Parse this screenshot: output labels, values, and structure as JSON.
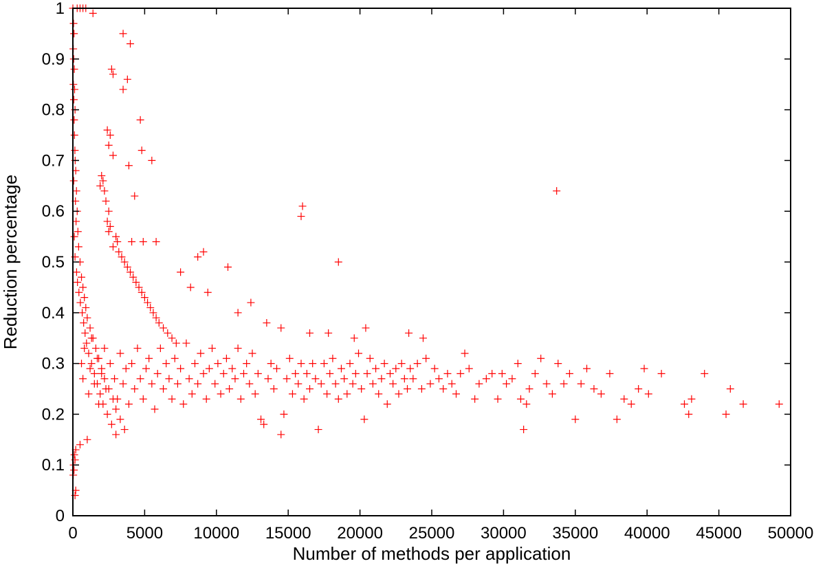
{
  "chart_data": {
    "type": "scatter",
    "title": "",
    "xlabel": "Number of methods per application",
    "ylabel": "Reduction percentage",
    "xlim": [
      0,
      50000
    ],
    "ylim": [
      0,
      1
    ],
    "x_ticks": [
      0,
      5000,
      10000,
      15000,
      20000,
      25000,
      30000,
      35000,
      40000,
      45000,
      50000
    ],
    "y_ticks": [
      0,
      0.1,
      0.2,
      0.3,
      0.4,
      0.5,
      0.6,
      0.7,
      0.8,
      0.9,
      1
    ],
    "x_tick_labels": [
      "0",
      "5000",
      "10000",
      "15000",
      "20000",
      "25000",
      "30000",
      "35000",
      "40000",
      "45000",
      "50000"
    ],
    "y_tick_labels": [
      "0",
      "0.1",
      "0.2",
      "0.3",
      "0.4",
      "0.5",
      "0.6",
      "0.7",
      "0.8",
      "0.9",
      "1"
    ],
    "marker": "+",
    "marker_color": "#ff0000",
    "grid": false,
    "legend": "none",
    "series": [
      {
        "points": [
          [
            0,
            1.0
          ],
          [
            50,
            0.97
          ],
          [
            80,
            0.95
          ],
          [
            30,
            0.92
          ],
          [
            60,
            0.9
          ],
          [
            100,
            0.88
          ],
          [
            40,
            0.85
          ],
          [
            120,
            0.84
          ],
          [
            70,
            0.82
          ],
          [
            150,
            0.8
          ],
          [
            90,
            0.78
          ],
          [
            110,
            0.75
          ],
          [
            140,
            0.72
          ],
          [
            160,
            0.7
          ],
          [
            200,
            0.68
          ],
          [
            60,
            0.66
          ],
          [
            250,
            0.64
          ],
          [
            180,
            0.62
          ],
          [
            300,
            0.6
          ],
          [
            220,
            0.58
          ],
          [
            350,
            0.56
          ],
          [
            100,
            0.55
          ],
          [
            400,
            0.53
          ],
          [
            150,
            0.51
          ],
          [
            500,
            0.5
          ],
          [
            260,
            0.48
          ],
          [
            600,
            0.47
          ],
          [
            320,
            0.46
          ],
          [
            700,
            0.45
          ],
          [
            420,
            0.44
          ],
          [
            800,
            0.43
          ],
          [
            520,
            0.42
          ],
          [
            900,
            0.41
          ],
          [
            650,
            0.4
          ],
          [
            1000,
            0.39
          ],
          [
            750,
            0.38
          ],
          [
            1200,
            0.37
          ],
          [
            850,
            0.36
          ],
          [
            1400,
            0.35
          ],
          [
            950,
            0.34
          ],
          [
            1600,
            0.33
          ],
          [
            1100,
            0.32
          ],
          [
            1800,
            0.31
          ],
          [
            1300,
            0.3
          ],
          [
            2000,
            0.29
          ],
          [
            1500,
            0.28
          ],
          [
            2200,
            0.27
          ],
          [
            1700,
            0.26
          ],
          [
            2500,
            0.25
          ],
          [
            1900,
            0.24
          ],
          [
            2800,
            0.23
          ],
          [
            2100,
            0.22
          ],
          [
            3000,
            0.21
          ],
          [
            2400,
            0.2
          ],
          [
            3300,
            0.19
          ],
          [
            2700,
            0.18
          ],
          [
            3600,
            0.17
          ],
          [
            3000,
            0.16
          ],
          [
            1000,
            0.15
          ],
          [
            500,
            0.14
          ],
          [
            200,
            0.13
          ],
          [
            100,
            0.12
          ],
          [
            150,
            0.11
          ],
          [
            50,
            0.1
          ],
          [
            80,
            0.09
          ],
          [
            30,
            0.08
          ],
          [
            200,
            0.05
          ],
          [
            150,
            0.04
          ],
          [
            300,
            1.0
          ],
          [
            500,
            1.0
          ],
          [
            700,
            1.0
          ],
          [
            900,
            1.0
          ],
          [
            1400,
            0.99
          ],
          [
            3500,
            0.95
          ],
          [
            4000,
            0.93
          ],
          [
            2700,
            0.88
          ],
          [
            2800,
            0.87
          ],
          [
            3800,
            0.86
          ],
          [
            3500,
            0.84
          ],
          [
            4700,
            0.78
          ],
          [
            2400,
            0.76
          ],
          [
            2600,
            0.75
          ],
          [
            2500,
            0.73
          ],
          [
            4800,
            0.72
          ],
          [
            2800,
            0.71
          ],
          [
            5500,
            0.7
          ],
          [
            3900,
            0.69
          ],
          [
            2000,
            0.67
          ],
          [
            2100,
            0.66
          ],
          [
            1900,
            0.65
          ],
          [
            2200,
            0.64
          ],
          [
            4300,
            0.63
          ],
          [
            2300,
            0.62
          ],
          [
            2500,
            0.6
          ],
          [
            2400,
            0.58
          ],
          [
            2600,
            0.57
          ],
          [
            2500,
            0.56
          ],
          [
            3000,
            0.55
          ],
          [
            3100,
            0.54
          ],
          [
            4100,
            0.54
          ],
          [
            4900,
            0.54
          ],
          [
            5800,
            0.54
          ],
          [
            2800,
            0.53
          ],
          [
            3200,
            0.52
          ],
          [
            3400,
            0.51
          ],
          [
            3600,
            0.5
          ],
          [
            3800,
            0.49
          ],
          [
            4000,
            0.48
          ],
          [
            4200,
            0.47
          ],
          [
            4400,
            0.46
          ],
          [
            4600,
            0.45
          ],
          [
            4800,
            0.44
          ],
          [
            5000,
            0.43
          ],
          [
            5200,
            0.42
          ],
          [
            5400,
            0.41
          ],
          [
            5600,
            0.4
          ],
          [
            5800,
            0.39
          ],
          [
            6000,
            0.38
          ],
          [
            6300,
            0.37
          ],
          [
            6600,
            0.36
          ],
          [
            6900,
            0.35
          ],
          [
            7200,
            0.34
          ],
          [
            16000,
            0.61
          ],
          [
            15900,
            0.59
          ],
          [
            18500,
            0.5
          ],
          [
            33700,
            0.64
          ],
          [
            10800,
            0.49
          ],
          [
            9100,
            0.52
          ],
          [
            8700,
            0.51
          ],
          [
            12400,
            0.42
          ],
          [
            7500,
            0.48
          ],
          [
            8200,
            0.45
          ],
          [
            9400,
            0.44
          ],
          [
            11500,
            0.4
          ],
          [
            13500,
            0.38
          ],
          [
            14500,
            0.37
          ],
          [
            16500,
            0.36
          ],
          [
            17800,
            0.36
          ],
          [
            20400,
            0.37
          ],
          [
            23400,
            0.36
          ],
          [
            24400,
            0.35
          ],
          [
            19600,
            0.35
          ],
          [
            600,
            0.3
          ],
          [
            700,
            0.27
          ],
          [
            800,
            0.33
          ],
          [
            1100,
            0.24
          ],
          [
            1200,
            0.29
          ],
          [
            1300,
            0.35
          ],
          [
            1500,
            0.26
          ],
          [
            1700,
            0.31
          ],
          [
            1800,
            0.22
          ],
          [
            2000,
            0.28
          ],
          [
            2200,
            0.33
          ],
          [
            2300,
            0.25
          ],
          [
            2600,
            0.3
          ],
          [
            2900,
            0.27
          ],
          [
            3100,
            0.23
          ],
          [
            3300,
            0.32
          ],
          [
            3500,
            0.26
          ],
          [
            3700,
            0.29
          ],
          [
            3900,
            0.22
          ],
          [
            4100,
            0.3
          ],
          [
            4300,
            0.25
          ],
          [
            4500,
            0.33
          ],
          [
            4700,
            0.27
          ],
          [
            4900,
            0.23
          ],
          [
            5100,
            0.29
          ],
          [
            5300,
            0.31
          ],
          [
            5500,
            0.26
          ],
          [
            5700,
            0.21
          ],
          [
            5900,
            0.28
          ],
          [
            6100,
            0.33
          ],
          [
            6300,
            0.25
          ],
          [
            6500,
            0.3
          ],
          [
            6700,
            0.27
          ],
          [
            6900,
            0.23
          ],
          [
            7100,
            0.31
          ],
          [
            7300,
            0.26
          ],
          [
            7500,
            0.29
          ],
          [
            7700,
            0.22
          ],
          [
            7900,
            0.34
          ],
          [
            8100,
            0.27
          ],
          [
            8300,
            0.24
          ],
          [
            8500,
            0.3
          ],
          [
            8700,
            0.26
          ],
          [
            8900,
            0.32
          ],
          [
            9100,
            0.28
          ],
          [
            9300,
            0.23
          ],
          [
            9500,
            0.29
          ],
          [
            9700,
            0.33
          ],
          [
            9900,
            0.26
          ],
          [
            10100,
            0.3
          ],
          [
            10300,
            0.24
          ],
          [
            10500,
            0.28
          ],
          [
            10700,
            0.31
          ],
          [
            10900,
            0.25
          ],
          [
            11100,
            0.29
          ],
          [
            11300,
            0.27
          ],
          [
            11500,
            0.33
          ],
          [
            11700,
            0.23
          ],
          [
            11900,
            0.28
          ],
          [
            12100,
            0.3
          ],
          [
            12300,
            0.26
          ],
          [
            12500,
            0.32
          ],
          [
            12700,
            0.24
          ],
          [
            12900,
            0.28
          ],
          [
            13100,
            0.19
          ],
          [
            13300,
            0.18
          ],
          [
            13600,
            0.27
          ],
          [
            13800,
            0.3
          ],
          [
            14000,
            0.25
          ],
          [
            14200,
            0.29
          ],
          [
            14500,
            0.16
          ],
          [
            14700,
            0.2
          ],
          [
            14900,
            0.27
          ],
          [
            15100,
            0.31
          ],
          [
            15300,
            0.24
          ],
          [
            15500,
            0.28
          ],
          [
            15700,
            0.26
          ],
          [
            15900,
            0.3
          ],
          [
            16100,
            0.23
          ],
          [
            16300,
            0.28
          ],
          [
            16500,
            0.25
          ],
          [
            16700,
            0.3
          ],
          [
            16900,
            0.27
          ],
          [
            17100,
            0.17
          ],
          [
            17300,
            0.26
          ],
          [
            17500,
            0.3
          ],
          [
            17700,
            0.24
          ],
          [
            17900,
            0.28
          ],
          [
            18100,
            0.31
          ],
          [
            18300,
            0.26
          ],
          [
            18500,
            0.23
          ],
          [
            18700,
            0.29
          ],
          [
            18900,
            0.27
          ],
          [
            19100,
            0.24
          ],
          [
            19300,
            0.3
          ],
          [
            19500,
            0.26
          ],
          [
            19700,
            0.28
          ],
          [
            19900,
            0.32
          ],
          [
            20100,
            0.25
          ],
          [
            20300,
            0.19
          ],
          [
            20500,
            0.28
          ],
          [
            20700,
            0.31
          ],
          [
            20900,
            0.26
          ],
          [
            21100,
            0.29
          ],
          [
            21300,
            0.24
          ],
          [
            21500,
            0.27
          ],
          [
            21700,
            0.3
          ],
          [
            21900,
            0.22
          ],
          [
            22100,
            0.28
          ],
          [
            22300,
            0.26
          ],
          [
            22500,
            0.29
          ],
          [
            22700,
            0.24
          ],
          [
            22900,
            0.3
          ],
          [
            23100,
            0.27
          ],
          [
            23300,
            0.25
          ],
          [
            23500,
            0.29
          ],
          [
            23700,
            0.27
          ],
          [
            24000,
            0.3
          ],
          [
            24300,
            0.25
          ],
          [
            24600,
            0.31
          ],
          [
            24900,
            0.26
          ],
          [
            25200,
            0.29
          ],
          [
            25500,
            0.27
          ],
          [
            25800,
            0.25
          ],
          [
            26100,
            0.28
          ],
          [
            26400,
            0.26
          ],
          [
            26700,
            0.24
          ],
          [
            27000,
            0.28
          ],
          [
            27300,
            0.32
          ],
          [
            27600,
            0.29
          ],
          [
            28000,
            0.23
          ],
          [
            28300,
            0.26
          ],
          [
            28800,
            0.27
          ],
          [
            29200,
            0.28
          ],
          [
            29600,
            0.23
          ],
          [
            29900,
            0.28
          ],
          [
            30200,
            0.26
          ],
          [
            30600,
            0.27
          ],
          [
            31000,
            0.3
          ],
          [
            31200,
            0.23
          ],
          [
            31400,
            0.17
          ],
          [
            31600,
            0.22
          ],
          [
            31800,
            0.25
          ],
          [
            32200,
            0.28
          ],
          [
            32600,
            0.31
          ],
          [
            33000,
            0.26
          ],
          [
            33400,
            0.24
          ],
          [
            33800,
            0.3
          ],
          [
            34200,
            0.26
          ],
          [
            34600,
            0.28
          ],
          [
            35000,
            0.19
          ],
          [
            35400,
            0.26
          ],
          [
            35800,
            0.29
          ],
          [
            36300,
            0.25
          ],
          [
            36800,
            0.24
          ],
          [
            37400,
            0.28
          ],
          [
            37900,
            0.19
          ],
          [
            38400,
            0.23
          ],
          [
            38900,
            0.22
          ],
          [
            39400,
            0.25
          ],
          [
            39800,
            0.29
          ],
          [
            40100,
            0.24
          ],
          [
            41000,
            0.28
          ],
          [
            42600,
            0.22
          ],
          [
            42900,
            0.2
          ],
          [
            43100,
            0.23
          ],
          [
            44000,
            0.28
          ],
          [
            45500,
            0.2
          ],
          [
            45800,
            0.25
          ],
          [
            46700,
            0.22
          ],
          [
            49200,
            0.22
          ]
        ]
      }
    ]
  }
}
